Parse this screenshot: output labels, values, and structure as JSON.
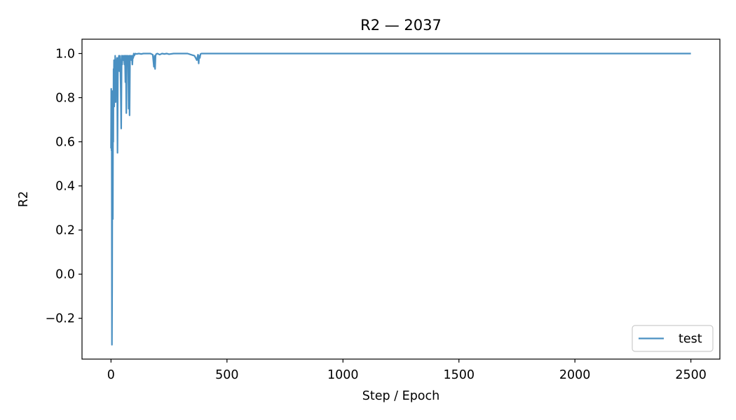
{
  "chart_data": {
    "type": "line",
    "title": "R2 — 2037",
    "xlabel": "Step / Epoch",
    "ylabel": "R2",
    "xlim": [
      -125,
      2625
    ],
    "ylim": [
      -0.385,
      1.065
    ],
    "xticks": [
      0,
      500,
      1000,
      1500,
      2000,
      2500
    ],
    "xtick_labels": [
      "0",
      "500",
      "1000",
      "1500",
      "2000",
      "2500"
    ],
    "yticks": [
      -0.2,
      0.0,
      0.2,
      0.4,
      0.6,
      0.8,
      1.0
    ],
    "ytick_labels": [
      "−0.2",
      "0.0",
      "0.2",
      "0.4",
      "0.6",
      "0.8",
      "1.0"
    ],
    "grid": false,
    "legend": {
      "position": "lower-right",
      "entries": [
        "test"
      ]
    },
    "series": [
      {
        "name": "test",
        "color": "#4a90c2",
        "x": [
          0,
          1,
          2,
          3,
          4,
          5,
          6,
          7,
          8,
          9,
          10,
          11,
          12,
          13,
          14,
          15,
          16,
          17,
          18,
          19,
          20,
          21,
          22,
          23,
          24,
          25,
          26,
          28,
          30,
          32,
          34,
          36,
          38,
          40,
          42,
          44,
          46,
          48,
          50,
          52,
          54,
          56,
          58,
          60,
          62,
          64,
          66,
          68,
          70,
          72,
          74,
          76,
          78,
          80,
          82,
          84,
          86,
          88,
          90,
          92,
          94,
          96,
          98,
          100,
          105,
          110,
          120,
          130,
          140,
          150,
          160,
          170,
          180,
          185,
          188,
          190,
          192,
          195,
          200,
          210,
          220,
          230,
          240,
          250,
          270,
          300,
          330,
          360,
          370,
          375,
          378,
          380,
          383,
          386,
          390,
          400,
          450,
          500,
          600,
          700,
          800,
          1000,
          1200,
          1500,
          1800,
          2000,
          2200,
          2500
        ],
        "y": [
          0.57,
          0.84,
          0.56,
          0.72,
          -0.32,
          -0.05,
          0.6,
          0.83,
          0.25,
          0.8,
          0.6,
          0.93,
          0.85,
          0.97,
          0.76,
          0.93,
          0.97,
          0.89,
          0.99,
          0.95,
          0.78,
          0.97,
          0.95,
          0.88,
          0.96,
          0.97,
          0.98,
          0.55,
          0.98,
          0.97,
          0.99,
          0.92,
          0.99,
          0.96,
          0.84,
          0.66,
          0.99,
          0.95,
          0.99,
          0.98,
          0.97,
          0.99,
          0.95,
          0.99,
          0.87,
          0.99,
          0.73,
          0.99,
          0.96,
          0.99,
          0.98,
          0.75,
          0.99,
          0.72,
          0.99,
          0.98,
          0.99,
          0.97,
          0.99,
          0.95,
          0.99,
          0.98,
          1.0,
          0.99,
          1.0,
          0.998,
          1.0,
          0.998,
          1.0,
          1.0,
          1.0,
          1.0,
          0.995,
          0.94,
          0.99,
          0.93,
          0.99,
          0.998,
          1.0,
          0.995,
          1.0,
          0.998,
          1.0,
          0.997,
          1.0,
          1.0,
          1.0,
          0.99,
          0.97,
          0.995,
          0.955,
          0.99,
          0.98,
          0.998,
          1.0,
          1.0,
          1.0,
          1.0,
          1.0,
          1.0,
          1.0,
          1.0,
          1.0,
          1.0,
          1.0,
          1.0,
          1.0,
          1.0
        ]
      }
    ]
  }
}
